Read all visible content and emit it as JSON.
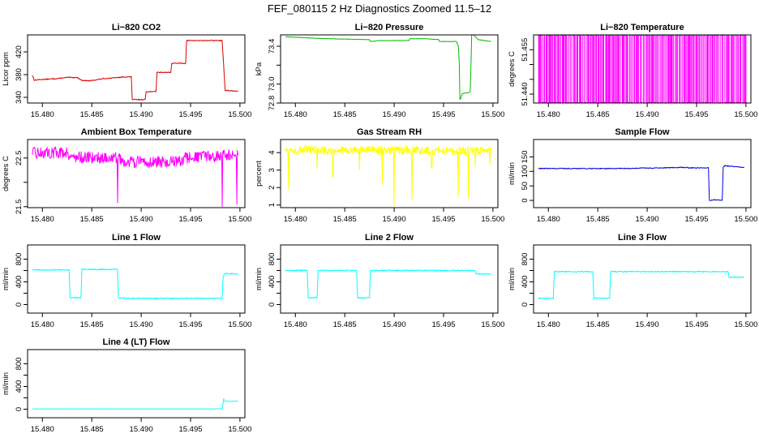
{
  "figure": {
    "title": "FEF_080115  2 Hz Diagnostics Zoomed 11.5–12"
  },
  "chart_data": [
    {
      "id": "co2",
      "type": "line",
      "title": "Li−820 CO2",
      "ylabel": "Licor ppm",
      "color": "#dd0000",
      "xlim": [
        15.4785,
        15.5005
      ],
      "ylim": [
        330,
        450
      ],
      "xticks": [
        15.48,
        15.485,
        15.49,
        15.495,
        15.5
      ],
      "xtick_labels": [
        "15.480",
        "15.485",
        "15.490",
        "15.495",
        "15.500"
      ],
      "yticks": [
        340,
        380,
        420
      ],
      "ytick_labels": [
        "340",
        "380",
        "420"
      ],
      "noise": 0.8,
      "x": [
        15.479,
        15.4792,
        15.4795,
        15.4805,
        15.4815,
        15.4825,
        15.4835,
        15.484,
        15.4848,
        15.4855,
        15.4862,
        15.487,
        15.4885,
        15.489,
        15.4891,
        15.4904,
        15.4905,
        15.4915,
        15.4916,
        15.493,
        15.4931,
        15.4945,
        15.4946,
        15.4982,
        15.4985,
        15.4998
      ],
      "y": [
        378,
        370,
        371,
        372,
        373,
        375,
        375,
        370,
        369,
        371,
        373,
        374,
        376,
        376,
        336,
        336,
        350,
        350,
        384,
        384,
        400,
        400,
        440,
        440,
        352,
        351
      ]
    },
    {
      "id": "pressure",
      "type": "line",
      "title": "Li−820 Pressure",
      "ylabel": "kPa",
      "color": "#00bb00",
      "xlim": [
        15.4785,
        15.5005
      ],
      "ylim": [
        72.8,
        73.52
      ],
      "xticks": [
        15.48,
        15.485,
        15.49,
        15.495,
        15.5
      ],
      "xtick_labels": [
        "15.480",
        "15.485",
        "15.490",
        "15.495",
        "15.500"
      ],
      "yticks": [
        72.8,
        73.0,
        73.2,
        73.4
      ],
      "ytick_labels": [
        "72.8",
        "73.0",
        "",
        "73.4"
      ],
      "noise": 0.002,
      "x": [
        15.479,
        15.483,
        15.4875,
        15.4876,
        15.4885,
        15.4915,
        15.4916,
        15.493,
        15.4945,
        15.4946,
        15.4963,
        15.4965,
        15.4966,
        15.49665,
        15.4967,
        15.4969,
        15.4975,
        15.4977,
        15.4978,
        15.49785,
        15.4985,
        15.4998
      ],
      "y": [
        73.5,
        73.48,
        73.47,
        73.45,
        73.46,
        73.46,
        73.48,
        73.48,
        73.47,
        73.45,
        73.45,
        73.4,
        73.2,
        72.84,
        72.84,
        72.9,
        72.91,
        72.92,
        73.3,
        73.54,
        73.47,
        73.45
      ]
    },
    {
      "id": "temperature",
      "type": "line",
      "title": "Li−820 Temperature",
      "ylabel": "degrees C",
      "color": "#ff00ff",
      "xlim": [
        15.4785,
        15.5005
      ],
      "ylim": [
        51.437,
        51.46
      ],
      "xticks": [
        15.48,
        15.485,
        15.49,
        15.495,
        15.5
      ],
      "xtick_labels": [
        "15.480",
        "15.485",
        "15.490",
        "15.495",
        "15.500"
      ],
      "yticks": [
        51.44,
        51.445,
        51.45,
        51.455
      ],
      "ytick_labels": [
        "51.440",
        "",
        "",
        "51.455"
      ],
      "toggle": {
        "low": 51.4372,
        "high": 51.4598,
        "count": 180,
        "seed": 11
      },
      "x": [],
      "y": []
    },
    {
      "id": "ambient",
      "type": "line",
      "title": "Ambient Box Temperature",
      "ylabel": "degrees C",
      "color": "#ff00ff",
      "xlim": [
        15.4785,
        15.5005
      ],
      "ylim": [
        21.48,
        22.88
      ],
      "xticks": [
        15.48,
        15.485,
        15.49,
        15.495,
        15.5
      ],
      "xtick_labels": [
        "15.480",
        "15.485",
        "15.490",
        "15.495",
        "15.500"
      ],
      "yticks": [
        21.5,
        22.0,
        22.5
      ],
      "ytick_labels": [
        "21.5",
        "",
        "22.5"
      ],
      "noise": 0.12,
      "x": [
        15.479,
        15.4825,
        15.483,
        15.4875,
        15.4885,
        15.494,
        15.4945,
        15.4998
      ],
      "y": [
        22.6,
        22.62,
        22.52,
        22.5,
        22.42,
        22.42,
        22.5,
        22.56
      ],
      "spikes": [
        {
          "x": 15.4876,
          "y": 21.58
        },
        {
          "x": 15.4982,
          "y": 21.5
        },
        {
          "x": 15.4997,
          "y": 21.55
        }
      ]
    },
    {
      "id": "rh",
      "type": "line",
      "title": "Gas Stream RH",
      "ylabel": "percent",
      "color": "#ffff00",
      "xlim": [
        15.4785,
        15.5005
      ],
      "ylim": [
        0.85,
        4.75
      ],
      "xticks": [
        15.48,
        15.485,
        15.49,
        15.495,
        15.5
      ],
      "xtick_labels": [
        "15.480",
        "15.485",
        "15.490",
        "15.495",
        "15.500"
      ],
      "yticks": [
        1,
        2,
        3,
        4
      ],
      "ytick_labels": [
        "1",
        "2",
        "3",
        "4"
      ],
      "noise": 0.25,
      "x": [
        15.479,
        15.4998
      ],
      "y": [
        4.15,
        4.1
      ],
      "spikes": [
        {
          "x": 15.4793,
          "y": 1.9
        },
        {
          "x": 15.4822,
          "y": 3.1
        },
        {
          "x": 15.4838,
          "y": 2.6
        },
        {
          "x": 15.4865,
          "y": 3.0
        },
        {
          "x": 15.4888,
          "y": 2.2
        },
        {
          "x": 15.49,
          "y": 0.95
        },
        {
          "x": 15.4918,
          "y": 1.3
        },
        {
          "x": 15.4938,
          "y": 3.1
        },
        {
          "x": 15.4965,
          "y": 1.5
        },
        {
          "x": 15.4975,
          "y": 1.4
        },
        {
          "x": 15.4982,
          "y": 3.2
        },
        {
          "x": 15.4997,
          "y": 3.3
        }
      ]
    },
    {
      "id": "sample_flow",
      "type": "line",
      "title": "Sample Flow",
      "ylabel": "ml/min",
      "color": "#0000dd",
      "xlim": [
        15.4785,
        15.5005
      ],
      "ylim": [
        -25,
        210
      ],
      "xticks": [
        15.48,
        15.485,
        15.49,
        15.495,
        15.5
      ],
      "xtick_labels": [
        "15.480",
        "15.485",
        "15.490",
        "15.495",
        "15.500"
      ],
      "yticks": [
        0,
        50,
        100,
        150
      ],
      "ytick_labels": [
        "0",
        "50",
        "100",
        "150"
      ],
      "noise": 1.5,
      "x": [
        15.479,
        15.4885,
        15.4895,
        15.4905,
        15.4935,
        15.4945,
        15.4962,
        15.4963,
        15.4968,
        15.4976,
        15.4977,
        15.49785,
        15.4998
      ],
      "y": [
        110,
        110,
        112,
        111,
        114,
        112,
        112,
        0,
        2,
        0,
        115,
        120,
        113
      ]
    },
    {
      "id": "line1",
      "type": "line",
      "title": "Line 1 Flow",
      "ylabel": "ml/min",
      "color": "#00ffff",
      "xlim": [
        15.4785,
        15.5005
      ],
      "ylim": [
        -150,
        1050
      ],
      "xticks": [
        15.48,
        15.485,
        15.49,
        15.495,
        15.5
      ],
      "xtick_labels": [
        "15.480",
        "15.485",
        "15.490",
        "15.495",
        "15.500"
      ],
      "yticks": [
        0,
        200,
        400,
        600,
        800
      ],
      "ytick_labels": [
        "0",
        "",
        "400",
        "",
        "800"
      ],
      "noise": 10,
      "x": [
        15.479,
        15.4827,
        15.4828,
        15.4839,
        15.484,
        15.4876,
        15.4877,
        15.489,
        15.4982,
        15.4983,
        15.4985,
        15.4998
      ],
      "y": [
        610,
        610,
        120,
        120,
        620,
        620,
        120,
        110,
        110,
        500,
        550,
        540
      ]
    },
    {
      "id": "line2",
      "type": "line",
      "title": "Line 2 Flow",
      "ylabel": "ml/min",
      "color": "#00ffff",
      "xlim": [
        15.4785,
        15.5005
      ],
      "ylim": [
        -150,
        1050
      ],
      "xticks": [
        15.48,
        15.485,
        15.49,
        15.495,
        15.5
      ],
      "xtick_labels": [
        "15.480",
        "15.485",
        "15.490",
        "15.495",
        "15.500"
      ],
      "yticks": [
        0,
        200,
        400,
        600,
        800
      ],
      "ytick_labels": [
        "0",
        "",
        "400",
        "",
        "800"
      ],
      "noise": 10,
      "x": [
        15.479,
        15.4812,
        15.4813,
        15.4822,
        15.4823,
        15.4862,
        15.4863,
        15.4875,
        15.4876,
        15.4982,
        15.4983,
        15.4998
      ],
      "y": [
        600,
        600,
        120,
        120,
        600,
        600,
        120,
        120,
        600,
        600,
        540,
        540
      ]
    },
    {
      "id": "line3",
      "type": "line",
      "title": "Line 3 Flow",
      "ylabel": "ml/min",
      "color": "#00ffff",
      "xlim": [
        15.4785,
        15.5005
      ],
      "ylim": [
        -150,
        1050
      ],
      "xticks": [
        15.48,
        15.485,
        15.49,
        15.495,
        15.5
      ],
      "xtick_labels": [
        "15.480",
        "15.485",
        "15.490",
        "15.495",
        "15.500"
      ],
      "yticks": [
        0,
        200,
        400,
        600,
        800
      ],
      "ytick_labels": [
        "0",
        "",
        "400",
        "",
        "800"
      ],
      "noise": 10,
      "x": [
        15.479,
        15.4805,
        15.4806,
        15.4845,
        15.4846,
        15.4862,
        15.4863,
        15.4982,
        15.4983,
        15.4998
      ],
      "y": [
        110,
        110,
        580,
        580,
        110,
        110,
        580,
        580,
        480,
        480
      ]
    },
    {
      "id": "line4",
      "type": "line",
      "title": "Line 4 (LT) Flow",
      "ylabel": "ml/min",
      "color": "#00ffff",
      "xlim": [
        15.4785,
        15.5005
      ],
      "ylim": [
        -150,
        1050
      ],
      "xticks": [
        15.48,
        15.485,
        15.49,
        15.495,
        15.5
      ],
      "xtick_labels": [
        "15.480",
        "15.485",
        "15.490",
        "15.495",
        "15.500"
      ],
      "yticks": [
        0,
        200,
        400,
        600,
        800
      ],
      "ytick_labels": [
        "0",
        "",
        "400",
        "",
        "800"
      ],
      "noise": 2,
      "x": [
        15.479,
        15.4982,
        15.4983,
        15.49835,
        15.4985,
        15.4998
      ],
      "y": [
        5,
        5,
        120,
        180,
        140,
        140
      ]
    }
  ]
}
